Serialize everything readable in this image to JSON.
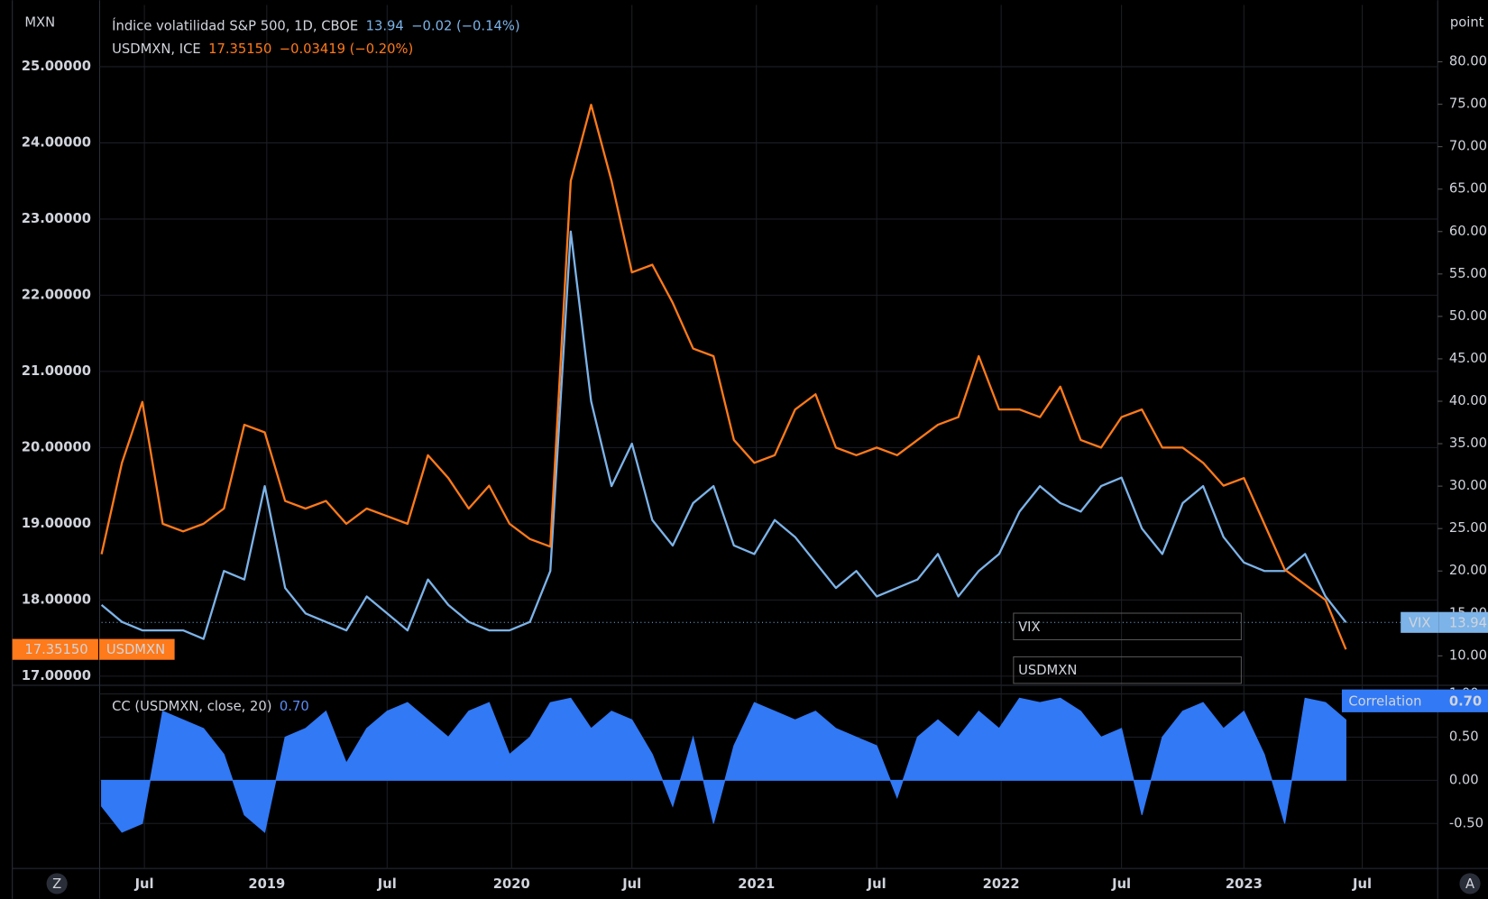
{
  "header": {
    "left_unit": "MXN",
    "right_unit": "point"
  },
  "footer": {
    "left_button": "Z",
    "right_button": "A"
  },
  "chart_data": [
    {
      "type": "line",
      "xlim": [
        0,
        65.5
      ],
      "xticks": [
        {
          "value": 2.1,
          "label": "Jul"
        },
        {
          "value": 8.1,
          "label": "2019"
        },
        {
          "value": 14,
          "label": "Jul"
        },
        {
          "value": 20.1,
          "label": "2020"
        },
        {
          "value": 26,
          "label": "Jul"
        },
        {
          "value": 32.1,
          "label": "2021"
        },
        {
          "value": 38,
          "label": "Jul"
        },
        {
          "value": 44.1,
          "label": "2022"
        },
        {
          "value": 50,
          "label": "Jul"
        },
        {
          "value": 56,
          "label": "2023"
        },
        {
          "value": 61.8,
          "label": "Jul"
        }
      ],
      "ylim": [
        16.88,
        25.81
      ],
      "yticks": [
        {
          "value": 17,
          "label": "17.00000"
        },
        {
          "value": 18,
          "label": "18.00000"
        },
        {
          "value": 19,
          "label": "19.00000"
        },
        {
          "value": 20,
          "label": "20.00000"
        },
        {
          "value": 21,
          "label": "21.00000"
        },
        {
          "value": 22,
          "label": "22.00000"
        },
        {
          "value": 23,
          "label": "23.00000"
        },
        {
          "value": 24,
          "label": "24.00000"
        },
        {
          "value": 25,
          "label": "25.00000"
        }
      ],
      "y2lim": [
        6.53,
        86.7
      ],
      "y2ticks": [
        {
          "value": 10,
          "label": "10.00"
        },
        {
          "value": 15,
          "label": "15.00"
        },
        {
          "value": 20,
          "label": "20.00"
        },
        {
          "value": 25,
          "label": "25.00"
        },
        {
          "value": 30,
          "label": "30.00"
        },
        {
          "value": 35,
          "label": "35.00"
        },
        {
          "value": 40,
          "label": "40.00"
        },
        {
          "value": 45,
          "label": "45.00"
        },
        {
          "value": 50,
          "label": "50.00"
        },
        {
          "value": 55,
          "label": "55.00"
        },
        {
          "value": 60,
          "label": "60.00"
        },
        {
          "value": 65,
          "label": "65.00"
        },
        {
          "value": 70,
          "label": "70.00"
        },
        {
          "value": 75,
          "label": "75.00"
        },
        {
          "value": 80,
          "label": "80.00"
        }
      ],
      "grid": true,
      "series": [
        {
          "name": "VIX",
          "legend": "Índice volatilidad S&P 500, 1D, CBOE",
          "change": "−0.02 (−0.14%)",
          "color": "#7cb3e8",
          "axis": "y2",
          "values": [
            16,
            14,
            13,
            13,
            13,
            12,
            20,
            19,
            30,
            18,
            15,
            14,
            13,
            17,
            15,
            13,
            19,
            16,
            14,
            13,
            13,
            14,
            20,
            60,
            40,
            30,
            35,
            26,
            23,
            28,
            30,
            23,
            22,
            26,
            24,
            21,
            18,
            20,
            17,
            18,
            19,
            22,
            17,
            20,
            22,
            27,
            30,
            28,
            27,
            30,
            31,
            25,
            22,
            28,
            30,
            24,
            21,
            20,
            20,
            22,
            17,
            13.94
          ]
        },
        {
          "name": "USDMXN",
          "legend": "USDMXN, ICE",
          "last_label": "17.35150",
          "change": "−0.03419 (−0.20%)",
          "color": "#ff7a1a",
          "values": [
            18.6,
            19.8,
            20.6,
            19.0,
            18.9,
            19.0,
            19.2,
            20.3,
            20.2,
            19.3,
            19.2,
            19.3,
            19.0,
            19.2,
            19.1,
            19.0,
            19.9,
            19.6,
            19.2,
            19.5,
            19.0,
            18.8,
            18.7,
            23.5,
            24.5,
            23.5,
            22.3,
            22.4,
            21.9,
            21.3,
            21.2,
            20.1,
            19.8,
            19.9,
            20.5,
            20.7,
            20.0,
            19.9,
            20.0,
            19.9,
            20.1,
            20.3,
            20.4,
            21.2,
            20.5,
            20.5,
            20.4,
            20.8,
            20.1,
            20.0,
            20.4,
            20.5,
            20.0,
            20.0,
            19.8,
            19.5,
            19.6,
            19.0,
            18.4,
            18.2,
            18.0,
            17.3515
          ]
        }
      ]
    },
    {
      "type": "area",
      "title": "CC (USDMXN, close, 20)",
      "ylim": [
        -1.02,
        1.1
      ],
      "yticks": [
        {
          "value": -0.5,
          "label": "-0.50"
        },
        {
          "value": 0,
          "label": "0.00"
        },
        {
          "value": 0.5,
          "label": "0.50"
        },
        {
          "value": 1,
          "label": "1.00"
        }
      ],
      "grid": true,
      "series": [
        {
          "name": "Correlation",
          "last_label": "0.70",
          "color": "#3179f5",
          "values": [
            -0.3,
            -0.6,
            -0.5,
            0.8,
            0.7,
            0.6,
            0.3,
            -0.4,
            -0.6,
            0.5,
            0.6,
            0.8,
            0.2,
            0.6,
            0.8,
            0.9,
            0.7,
            0.5,
            0.8,
            0.9,
            0.3,
            0.5,
            0.9,
            0.95,
            0.6,
            0.8,
            0.7,
            0.3,
            -0.3,
            0.5,
            -0.5,
            0.4,
            0.9,
            0.8,
            0.7,
            0.8,
            0.6,
            0.5,
            0.4,
            -0.2,
            0.5,
            0.7,
            0.5,
            0.8,
            0.6,
            0.95,
            0.9,
            0.95,
            0.8,
            0.5,
            0.6,
            -0.4,
            0.5,
            0.8,
            0.9,
            0.6,
            0.8,
            0.3,
            -0.5,
            0.95,
            0.9,
            0.7
          ]
        }
      ]
    }
  ]
}
